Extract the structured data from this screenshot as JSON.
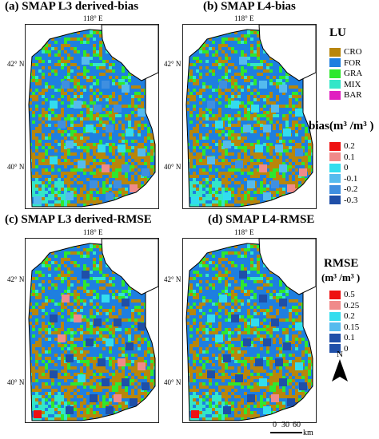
{
  "panels": {
    "a": {
      "title": "(a) SMAP L3 derived-bias",
      "lon": "118° E",
      "lat_top": "42° N",
      "lat_bottom": "40° N"
    },
    "b": {
      "title": "(b) SMAP L4-bias",
      "lon": "118° E",
      "lat_top": "42° N",
      "lat_bottom": "40° N"
    },
    "c": {
      "title": "(c) SMAP L3 derived-RMSE",
      "lon": "118° E",
      "lat_top": "42° N",
      "lat_bottom": "40° N"
    },
    "d": {
      "title": "(d) SMAP L4-RMSE",
      "lon": "118° E",
      "lat_top": "42° N",
      "lat_bottom": "40° N"
    }
  },
  "legend_lu": {
    "title": "LU",
    "items": [
      {
        "label": "CRO",
        "color": "#b8860b"
      },
      {
        "label": "FOR",
        "color": "#1e7fe0"
      },
      {
        "label": "GRA",
        "color": "#2ee82e"
      },
      {
        "label": "MIX",
        "color": "#33e6c8"
      },
      {
        "label": "BAR",
        "color": "#e020c0"
      }
    ]
  },
  "legend_bias": {
    "title": "bias(m³ /m³ )",
    "items": [
      {
        "label": "0.2",
        "color": "#ee1111"
      },
      {
        "label": "0.1",
        "color": "#f08a8a"
      },
      {
        "label": "0",
        "color": "#33ddee"
      },
      {
        "label": "-0.1",
        "color": "#55bbee"
      },
      {
        "label": "-0.2",
        "color": "#3f8fe0"
      },
      {
        "label": "-0.3",
        "color": "#1f4fa8"
      }
    ]
  },
  "legend_rmse": {
    "title_line1": "RMSE",
    "title_line2": "(m³ /m³ )",
    "items": [
      {
        "label": "0.5",
        "color": "#ee1111"
      },
      {
        "label": "0.25",
        "color": "#f08a8a"
      },
      {
        "label": "0.2",
        "color": "#33ddee"
      },
      {
        "label": "0.15",
        "color": "#55bbee"
      },
      {
        "label": "0.1",
        "color": "#1f4fa8"
      },
      {
        "label": "0",
        "color": "#1f4fa8"
      }
    ]
  },
  "north_label": "N",
  "scale": {
    "ticks": [
      "0",
      "30",
      "60"
    ],
    "unit": "km"
  }
}
